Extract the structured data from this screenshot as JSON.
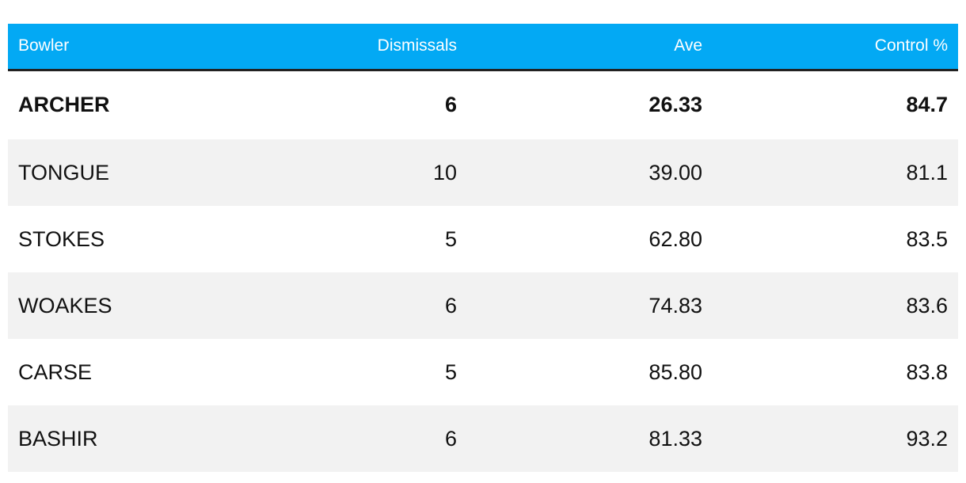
{
  "chart_data": {
    "type": "table",
    "columns": [
      "Bowler",
      "Dismissals",
      "Ave",
      "Control %"
    ],
    "rows": [
      {
        "bowler": "ARCHER",
        "dismissals": "6",
        "ave": "26.33",
        "control": "84.7",
        "bold": true
      },
      {
        "bowler": "TONGUE",
        "dismissals": "10",
        "ave": "39.00",
        "control": "81.1",
        "bold": false
      },
      {
        "bowler": "STOKES",
        "dismissals": "5",
        "ave": "62.80",
        "control": "83.5",
        "bold": false
      },
      {
        "bowler": "WOAKES",
        "dismissals": "6",
        "ave": "74.83",
        "control": "83.6",
        "bold": false
      },
      {
        "bowler": "CARSE",
        "dismissals": "5",
        "ave": "85.80",
        "control": "83.8",
        "bold": false
      },
      {
        "bowler": "BASHIR",
        "dismissals": "6",
        "ave": "81.33",
        "control": "93.2",
        "bold": false
      }
    ]
  },
  "colors": {
    "header_background": "#03a9f4",
    "header_text": "#ffffff",
    "header_rule": "#222222",
    "stripe": "#f2f2f2"
  }
}
